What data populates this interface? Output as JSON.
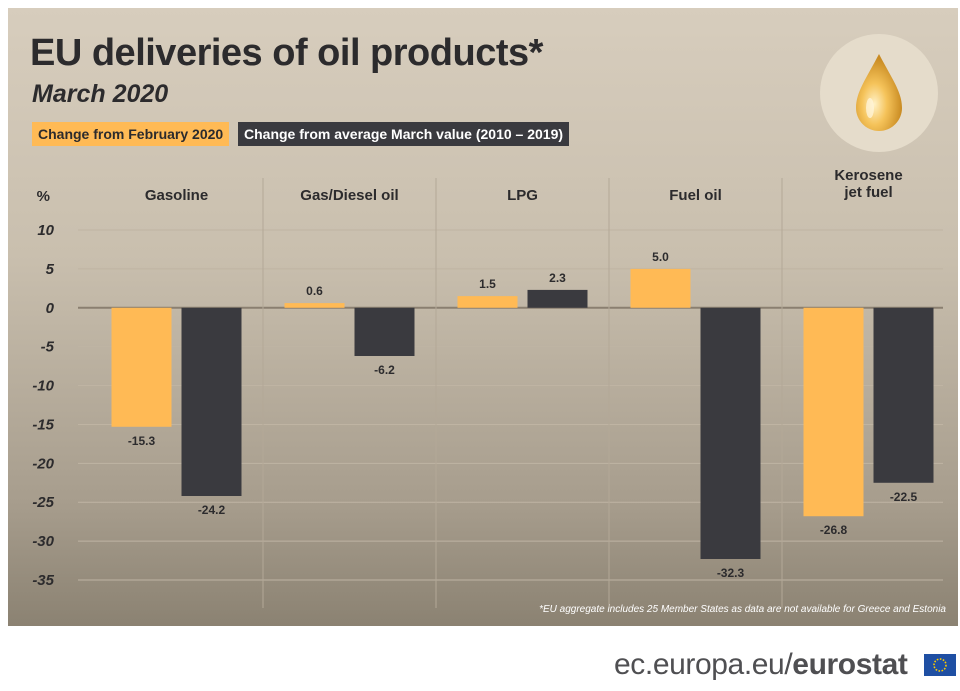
{
  "title": "EU deliveries of oil products*",
  "subtitle": "March 2020",
  "legend": [
    {
      "label": "Change from February 2020",
      "color": "#ffba55"
    },
    {
      "label": "Change from average March value (2010 – 2019)",
      "color": "#3a3a3f"
    }
  ],
  "footnote": "*EU aggregate includes 25 Member States as data are not available for Greece and Estonia",
  "source": {
    "domain": "ec.europa.eu/",
    "brand": "eurostat"
  },
  "icons": {
    "badge": "oil-drop-icon",
    "flag": "eu-flag-icon"
  },
  "chart_data": {
    "type": "bar",
    "ylabel": "%",
    "ylim": [
      -35,
      10
    ],
    "yticks": [
      10,
      5,
      0,
      -5,
      -10,
      -15,
      -20,
      -25,
      -30,
      -35
    ],
    "categories": [
      "Gasoline",
      "Gas/Diesel oil",
      "LPG",
      "Fuel oil",
      "Kerosene jet fuel"
    ],
    "category_lines": [
      [
        "Gasoline"
      ],
      [
        "Gas/Diesel oil"
      ],
      [
        "LPG"
      ],
      [
        "Fuel oil"
      ],
      [
        "Kerosene",
        "jet fuel"
      ]
    ],
    "series": [
      {
        "name": "Change from February 2020",
        "color": "#ffba55",
        "values": [
          -15.3,
          0.6,
          1.5,
          5.0,
          -26.8
        ]
      },
      {
        "name": "Change from average March value (2010 – 2019)",
        "color": "#3a3a3f",
        "values": [
          -24.2,
          -6.2,
          2.3,
          -32.3,
          -22.5
        ]
      }
    ],
    "grid": true
  }
}
